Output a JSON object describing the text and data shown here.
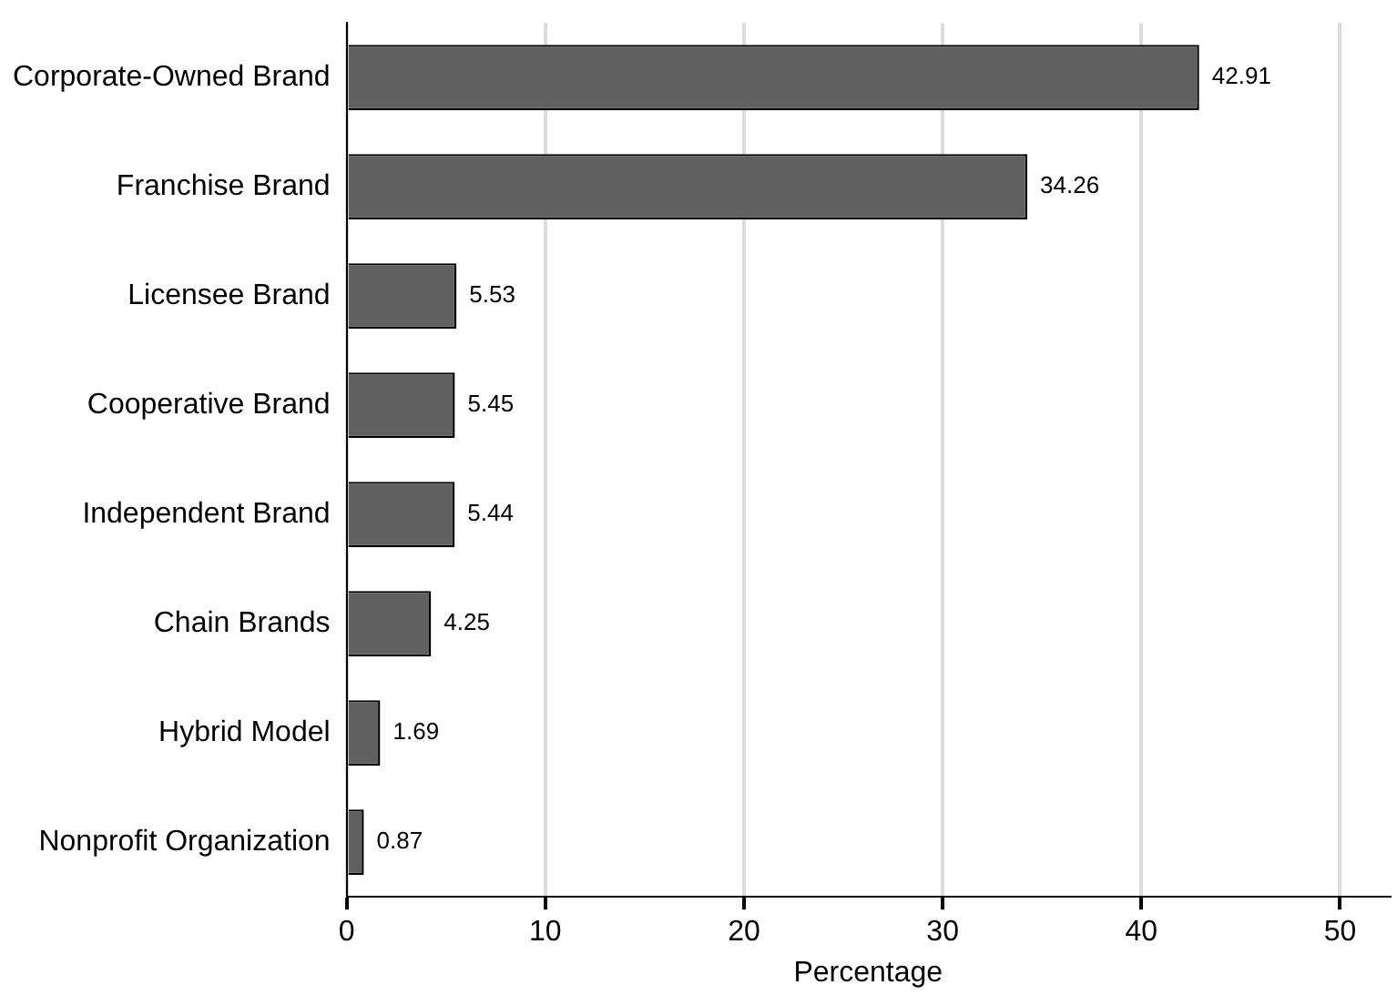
{
  "chart_data": {
    "type": "bar",
    "orientation": "horizontal",
    "xlabel": "Percentage",
    "categories": [
      "Corporate-Owned Brand",
      "Franchise Brand",
      "Licensee Brand",
      "Cooperative Brand",
      "Independent Brand",
      "Chain Brands",
      "Hybrid Model",
      "Nonprofit Organization"
    ],
    "values": [
      42.91,
      34.26,
      5.53,
      5.45,
      5.44,
      4.25,
      1.69,
      0.87
    ],
    "color": "#606060",
    "data_labels": true,
    "xlim": [
      0,
      52.5
    ],
    "xticks": [
      0,
      10,
      20,
      30,
      40,
      50
    ],
    "grid": "x",
    "legend": false
  }
}
